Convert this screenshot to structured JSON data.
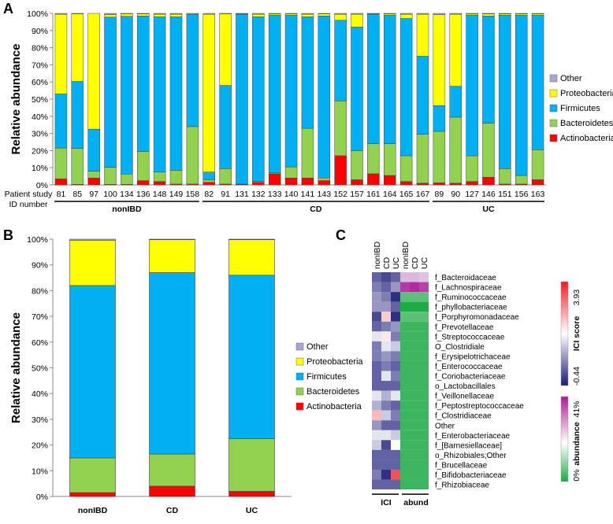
{
  "colors": {
    "Other": "#a7a7d4",
    "Proteobacteria": "#ffff00",
    "Firmicutes": "#00b0f0",
    "Bacteroidetes": "#92d050",
    "Actinobacteria": "#ff0000"
  },
  "chart_data": [
    {
      "panel": "A",
      "type": "bar",
      "stacked": true,
      "ylabel": "Relative abundance",
      "xlabel_line1": "Patient study",
      "xlabel_line2": "ID number",
      "ylim": [
        0,
        100
      ],
      "yticks": [
        "0%",
        "10%",
        "20%",
        "30%",
        "40%",
        "50%",
        "60%",
        "70%",
        "80%",
        "90%",
        "100%"
      ],
      "categories": [
        "81",
        "85",
        "97",
        "100",
        "134",
        "136",
        "148",
        "149",
        "158",
        "82",
        "91",
        "131",
        "132",
        "133",
        "140",
        "141",
        "143",
        "152",
        "157",
        "161",
        "164",
        "165",
        "167",
        "89",
        "90",
        "127",
        "146",
        "151",
        "156",
        "163"
      ],
      "groups": [
        {
          "name": "nonIBD",
          "count": 9
        },
        {
          "name": "CD",
          "count": 14
        },
        {
          "name": "UC",
          "count": 7
        }
      ],
      "series": [
        {
          "name": "Actinobacteria",
          "values": [
            3.5,
            0.3,
            4,
            0.3,
            0.3,
            2.5,
            2,
            0.5,
            0.5,
            1.5,
            0.5,
            0.3,
            1.5,
            6.5,
            4,
            4,
            2.5,
            17,
            3,
            6.5,
            5.5,
            2,
            1,
            1.2,
            1,
            2,
            4.5,
            0.5,
            0.5,
            3
          ]
        },
        {
          "name": "Bacteroidetes",
          "values": [
            18,
            21,
            4,
            10,
            6,
            17,
            5.5,
            8,
            33.5,
            1.5,
            9,
            0.2,
            0.5,
            0.5,
            6.5,
            29,
            1.5,
            32,
            17,
            17.5,
            18.5,
            15,
            28.5,
            30,
            38.5,
            15,
            31.5,
            9,
            5,
            17.5
          ]
        },
        {
          "name": "Firmicutes",
          "values": [
            31.5,
            39,
            24.5,
            87.5,
            92,
            79,
            90.5,
            89.5,
            65.5,
            4.5,
            48.5,
            99,
            96,
            92,
            88.5,
            65,
            94.5,
            47,
            72,
            75.5,
            75,
            80,
            45.5,
            15,
            18,
            82,
            62.5,
            89.5,
            93.5,
            78.5
          ]
        },
        {
          "name": "Proteobacteria",
          "values": [
            46.5,
            39.5,
            67.5,
            1.5,
            1.5,
            1.2,
            1.5,
            1.5,
            0.4,
            92,
            41.8,
            0.3,
            1.5,
            0.8,
            0.8,
            1.5,
            1.3,
            3.5,
            7.5,
            0.3,
            0.8,
            2.5,
            24.5,
            53,
            42,
            0.8,
            1.2,
            0.8,
            0.8,
            0.8
          ]
        },
        {
          "name": "Other",
          "values": [
            0.5,
            0.2,
            0,
            0.7,
            0.2,
            0.3,
            0.5,
            0.5,
            0.1,
            0.5,
            0.2,
            0.2,
            0.5,
            0.2,
            0.2,
            0.5,
            0.2,
            0.5,
            0.5,
            0.2,
            0.2,
            0.5,
            0.5,
            0.8,
            0.5,
            0.2,
            0.3,
            0.2,
            0.2,
            0.2
          ]
        }
      ],
      "legend": [
        "Other",
        "Proteobacteria",
        "Firmicutes",
        "Bacteroidetes",
        "Actinobacteria"
      ]
    },
    {
      "panel": "B",
      "type": "bar",
      "stacked": true,
      "ylabel": "Relative abundance",
      "ylim": [
        0,
        100
      ],
      "yticks": [
        "0%",
        "10%",
        "20%",
        "30%",
        "40%",
        "50%",
        "60%",
        "70%",
        "80%",
        "90%",
        "100%"
      ],
      "categories": [
        "nonIBD",
        "CD",
        "UC"
      ],
      "series": [
        {
          "name": "Actinobacteria",
          "values": [
            1.5,
            4,
            2
          ]
        },
        {
          "name": "Bacteroidetes",
          "values": [
            13.5,
            12.5,
            20.5
          ]
        },
        {
          "name": "Firmicutes",
          "values": [
            67,
            70.5,
            63.5
          ]
        },
        {
          "name": "Proteobacteria",
          "values": [
            17.6,
            12.8,
            13.8
          ]
        },
        {
          "name": "Other",
          "values": [
            0.4,
            0.2,
            0.2
          ]
        }
      ],
      "legend": [
        "Other",
        "Proteobacteria",
        "Firmicutes",
        "Bacteroidetes",
        "Actinobacteria"
      ]
    },
    {
      "panel": "C",
      "type": "heatmap",
      "columns": [
        "nonIBD",
        "CD",
        "UC",
        "nonIBD",
        "CD",
        "UC"
      ],
      "column_groups": [
        "ICI",
        "abund"
      ],
      "rows": [
        "f_Bacteroidaceae",
        "f_Lachnospiraceae",
        "f_Ruminococcaceae",
        "f_phyllobacteriaceae",
        "f_Porphyromonadaceae",
        "f_Prevotellaceae",
        "f_Streptococcaceae",
        "O_Clostridiale",
        "f_Erysipelotrichaceae",
        "f_Enterococcaceae",
        "f_Coriobacteriaceae",
        "o_Lactobacillales",
        "f_Veillonellaceae",
        "f_Peptostreptococcaceae",
        "f_Clostridiaceae",
        "Other",
        "f_Enterobacteriaceae",
        "f_[Barnesiellaceae]",
        "o_Rhizobiales;Other",
        "f_Brucellaceae",
        "f_Bifidobacteriaceae",
        "f_Rhizobiaceae"
      ],
      "ici_values": [
        [
          -0.3,
          -0.35,
          -0.3
        ],
        [
          -0.25,
          -0.3,
          -0.2
        ],
        [
          -0.2,
          -0.25,
          -0.4
        ],
        [
          -0.2,
          -0.2,
          -0.3
        ],
        [
          -0.35,
          0.9,
          -0.4
        ],
        [
          -0.3,
          -0.25,
          -0.2
        ],
        [
          -0.05,
          0.4,
          -0.25
        ],
        [
          -0.25,
          -0.05,
          -0.1
        ],
        [
          -0.25,
          -0.2,
          -0.25
        ],
        [
          -0.3,
          -0.25,
          -0.3
        ],
        [
          -0.3,
          -0.05,
          -0.25
        ],
        [
          -0.3,
          -0.3,
          -0.3
        ],
        [
          -0.05,
          -0.15,
          -0.05
        ],
        [
          -0.15,
          -0.25,
          -0.3
        ],
        [
          1.2,
          -0.1,
          -0.25
        ],
        [
          -0.2,
          -0.3,
          -0.3
        ],
        [
          -0.05,
          -0.05,
          -0.1
        ],
        [
          -0.1,
          -0.35,
          0.1
        ],
        [
          -0.3,
          -0.3,
          -0.3
        ],
        [
          -0.3,
          -0.3,
          -0.3
        ],
        [
          -0.25,
          -0.4,
          3.0
        ],
        [
          -0.3,
          -0.3,
          -0.3
        ]
      ],
      "abund_values": [
        [
          8,
          8,
          6
        ],
        [
          35,
          38,
          33
        ],
        [
          1,
          1,
          1
        ],
        [
          0,
          0,
          0
        ],
        [
          1,
          1,
          1
        ],
        [
          0.5,
          0.5,
          0.5
        ],
        [
          0.5,
          0.5,
          0.5
        ],
        [
          0.5,
          0.5,
          0.5
        ],
        [
          0.5,
          0.5,
          0.5
        ],
        [
          0.5,
          0.5,
          0.5
        ],
        [
          0.5,
          0.5,
          0.5
        ],
        [
          0.5,
          0.5,
          0.5
        ],
        [
          0.5,
          0.5,
          0.5
        ],
        [
          0.5,
          0.5,
          0.5
        ],
        [
          0.5,
          0.5,
          0.5
        ],
        [
          0.5,
          0.5,
          0.5
        ],
        [
          0.5,
          0.5,
          0.5
        ],
        [
          0.5,
          0.5,
          0.5
        ],
        [
          0.5,
          0.5,
          0.5
        ],
        [
          0.5,
          0.5,
          0.5
        ],
        [
          0.5,
          0.5,
          0.5
        ],
        [
          0.5,
          0.5,
          0.5
        ]
      ],
      "ici_scale": {
        "label": "ICI score",
        "max": "3.93",
        "min": "-0.44",
        "max_value": 3.93,
        "min_value": -0.44
      },
      "abund_scale": {
        "label": "abundance",
        "max": "41%",
        "min": "0%",
        "max_value": 41,
        "min_value": 0
      }
    }
  ],
  "panel_labels": {
    "a": "A",
    "b": "B",
    "c": "C"
  }
}
